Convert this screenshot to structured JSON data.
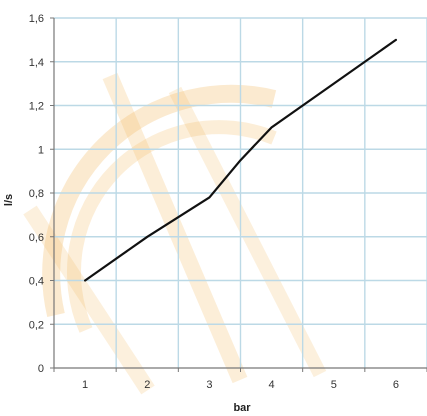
{
  "chart_data": {
    "type": "line",
    "title": "",
    "xlabel": "bar",
    "ylabel": "l/s",
    "x": [
      1,
      2,
      3,
      3.5,
      4,
      5,
      6
    ],
    "series": [
      {
        "values": [
          0.4,
          0.6,
          0.78,
          0.95,
          1.1,
          1.3,
          1.5
        ]
      }
    ],
    "x_ticks": [
      "1",
      "2",
      "3",
      "4",
      "5",
      "6"
    ],
    "y_ticks": [
      "0",
      "0,2",
      "0,4",
      "0,6",
      "0,8",
      "1",
      "1,2",
      "1,4",
      "1,6"
    ],
    "xlim": [
      0.5,
      6.5
    ],
    "ylim": [
      0,
      1.6
    ],
    "grid": true,
    "legend": "none",
    "line_color": "#111111",
    "grid_color": "#bcd9e6",
    "watermark_color": "#f2bb63"
  }
}
